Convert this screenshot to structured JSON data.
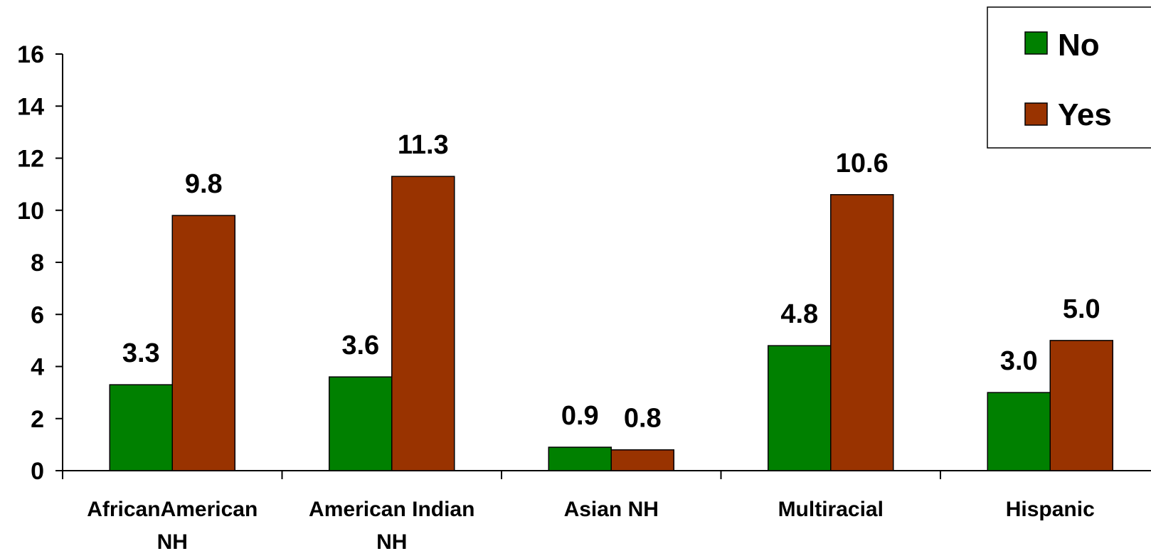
{
  "chart_data": {
    "type": "bar",
    "categories": [
      [
        "AfricanAmerican",
        "NH"
      ],
      [
        "American Indian",
        "NH"
      ],
      [
        "Asian  NH"
      ],
      [
        "Multiracial"
      ],
      [
        "Hispanic"
      ]
    ],
    "series": [
      {
        "name": "No",
        "color": "#008000",
        "values": [
          3.3,
          3.6,
          0.9,
          4.8,
          3.0
        ],
        "labels": [
          "3.3",
          "3.6",
          "0.9",
          "4.8",
          "3.0"
        ]
      },
      {
        "name": "Yes",
        "color": "#993300",
        "values": [
          9.8,
          11.3,
          0.8,
          10.6,
          5.0
        ],
        "labels": [
          "9.8",
          "11.3",
          "0.8",
          "10.6",
          "5.0"
        ]
      }
    ],
    "yticks": [
      "0",
      "2",
      "4",
      "6",
      "8",
      "10",
      "12",
      "14",
      "16"
    ],
    "ylim": [
      0,
      16
    ],
    "grid": false,
    "legend_position": "top-right"
  }
}
